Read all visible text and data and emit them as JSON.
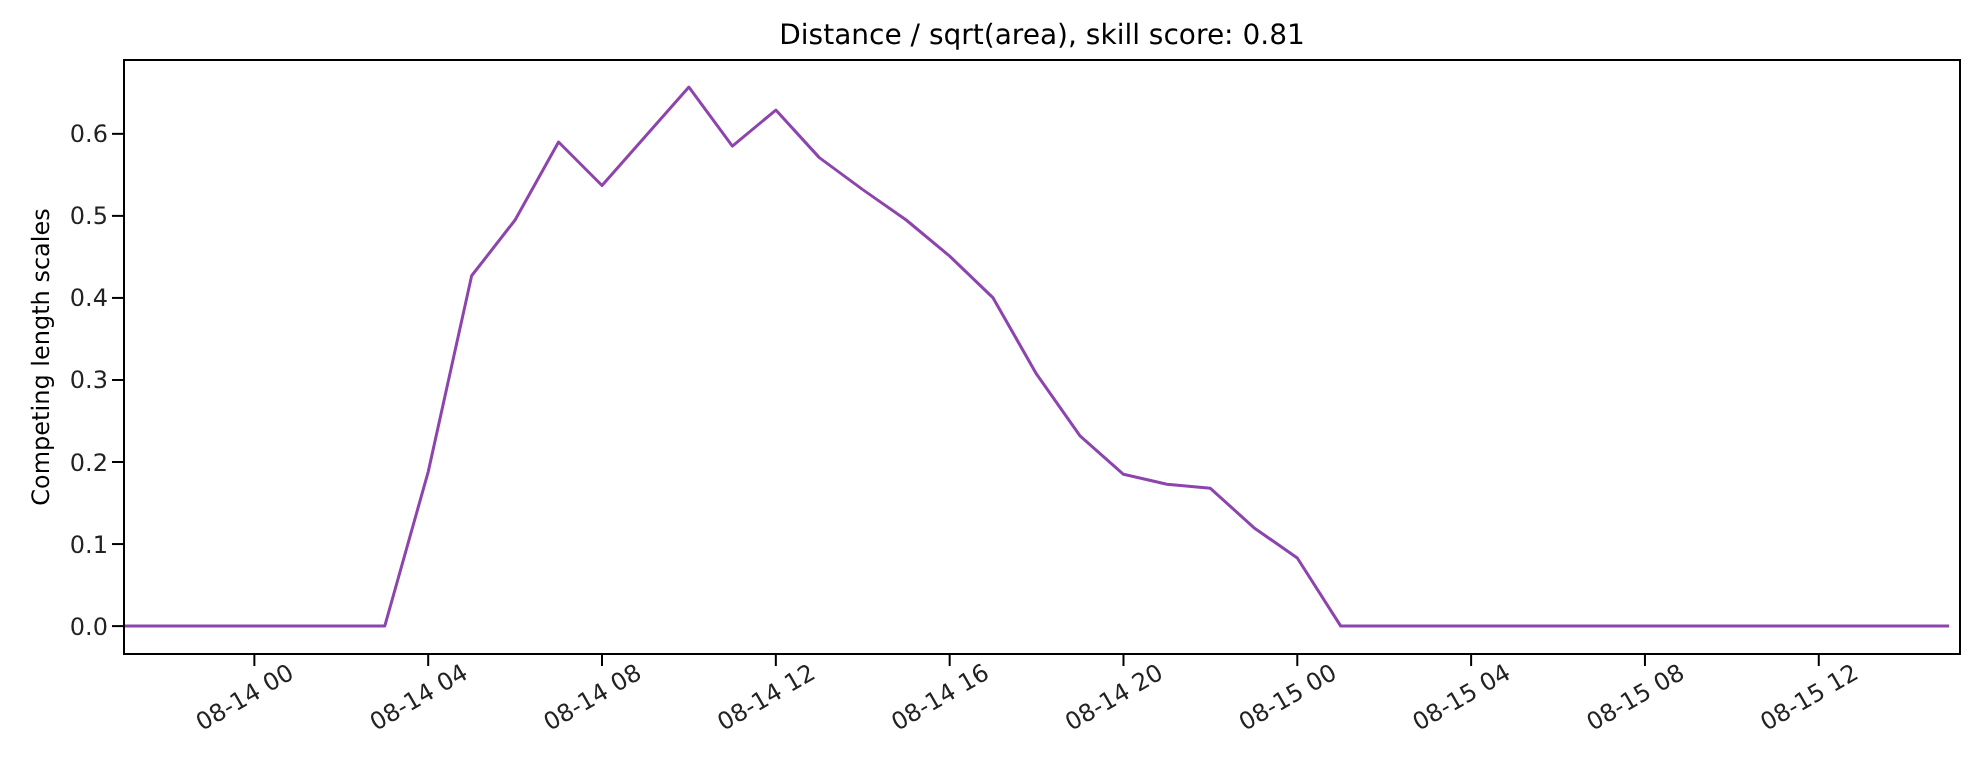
{
  "chart_data": {
    "type": "line",
    "title": "Distance / sqrt(area), skill score: 0.81",
    "ylabel": "Competing length scales",
    "x": [
      "--08-13T21:00",
      "--08-13T22:00",
      "--08-13T23:00",
      "--08-14T00:00",
      "--08-14T01:00",
      "--08-14T02:00",
      "--08-14T03:00",
      "--08-14T04:00",
      "--08-14T05:00",
      "--08-14T06:00",
      "--08-14T07:00",
      "--08-14T08:00",
      "--08-14T09:00",
      "--08-14T10:00",
      "--08-14T11:00",
      "--08-14T12:00",
      "--08-14T13:00",
      "--08-14T14:00",
      "--08-14T15:00",
      "--08-14T16:00",
      "--08-14T17:00",
      "--08-14T18:00",
      "--08-14T19:00",
      "--08-14T20:00",
      "--08-14T21:00",
      "--08-14T22:00",
      "--08-14T23:00",
      "--08-15T00:00",
      "--08-15T01:00",
      "--08-15T02:00",
      "--08-15T03:00",
      "--08-15T04:00",
      "--08-15T05:00",
      "--08-15T06:00",
      "--08-15T07:00",
      "--08-15T08:00",
      "--08-15T09:00",
      "--08-15T10:00",
      "--08-15T11:00",
      "--08-15T12:00",
      "--08-15T13:00",
      "--08-15T14:00",
      "--08-15T15:00"
    ],
    "series": [
      {
        "color": "#8e44ad",
        "values": [
          0,
          0,
          0,
          0,
          0,
          0,
          0,
          0.188,
          0.427,
          0.495,
          0.59,
          0.537,
          0.597,
          0.657,
          0.585,
          0.629,
          0.571,
          0.532,
          0.495,
          0.451,
          0.4,
          0.307,
          0.232,
          0.185,
          0.173,
          0.168,
          0.12,
          0.083,
          0,
          0,
          0,
          0,
          0,
          0,
          0,
          0,
          0,
          0,
          0,
          0,
          0,
          0,
          0
        ]
      }
    ],
    "xlim": [
      "--08-13T21:00",
      "--08-15T15:15"
    ],
    "xticks": [
      {
        "value": "--08-14T00:00",
        "label": "08-14 00"
      },
      {
        "value": "--08-14T04:00",
        "label": "08-14 04"
      },
      {
        "value": "--08-14T08:00",
        "label": "08-14 08"
      },
      {
        "value": "--08-14T12:00",
        "label": "08-14 12"
      },
      {
        "value": "--08-14T16:00",
        "label": "08-14 16"
      },
      {
        "value": "--08-14T20:00",
        "label": "08-14 20"
      },
      {
        "value": "--08-15T00:00",
        "label": "08-15 00"
      },
      {
        "value": "--08-15T04:00",
        "label": "08-15 04"
      },
      {
        "value": "--08-15T08:00",
        "label": "08-15 08"
      },
      {
        "value": "--08-15T12:00",
        "label": "08-15 12"
      }
    ],
    "ylim": [
      -0.034,
      0.69
    ],
    "yticks": [
      {
        "value": 0,
        "label": "0.0"
      },
      {
        "value": 0.1,
        "label": "0.1"
      },
      {
        "value": 0.2,
        "label": "0.2"
      },
      {
        "value": 0.3,
        "label": "0.3"
      },
      {
        "value": 0.4,
        "label": "0.4"
      },
      {
        "value": 0.5,
        "label": "0.5"
      },
      {
        "value": 0.6,
        "label": "0.6"
      }
    ],
    "grid": false,
    "legend": false,
    "marker": "none",
    "line_style": "solid"
  }
}
